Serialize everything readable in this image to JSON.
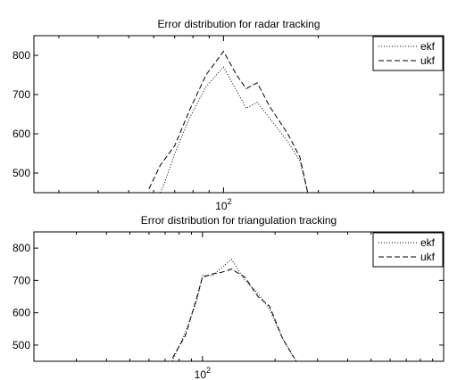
{
  "chart_data": [
    {
      "type": "line",
      "title": "Error distribution for radar tracking",
      "xlabel": "",
      "ylabel": "",
      "x_scale": "log",
      "xlim": [
        25,
        500
      ],
      "ylim": [
        450,
        850
      ],
      "grid": false,
      "legend_position": "top-right",
      "x_tick_labels": [
        {
          "value": 100,
          "base": "10",
          "exp": "2"
        }
      ],
      "y_ticks": [
        500,
        600,
        700,
        800
      ],
      "series": [
        {
          "name": "ekf",
          "style": "dotted",
          "color": "#000000",
          "points": [
            [
              63,
              450
            ],
            [
              65,
              475
            ],
            [
              70,
              550
            ],
            [
              78,
              640
            ],
            [
              88,
              720
            ],
            [
              100,
              770
            ],
            [
              110,
              710
            ],
            [
              118,
              665
            ],
            [
              128,
              680
            ],
            [
              140,
              640
            ],
            [
              160,
              580
            ],
            [
              175,
              530
            ],
            [
              185,
              450
            ]
          ]
        },
        {
          "name": "ukf",
          "style": "dashed",
          "color": "#000000",
          "points": [
            [
              58,
              460
            ],
            [
              63,
              520
            ],
            [
              70,
              570
            ],
            [
              78,
              660
            ],
            [
              88,
              750
            ],
            [
              100,
              810
            ],
            [
              110,
              750
            ],
            [
              118,
              715
            ],
            [
              128,
              730
            ],
            [
              140,
              670
            ],
            [
              160,
              600
            ],
            [
              175,
              540
            ],
            [
              185,
              450
            ]
          ]
        }
      ]
    },
    {
      "type": "line",
      "title": "Error distribution for triangulation tracking",
      "xlabel": "",
      "ylabel": "",
      "x_scale": "log",
      "xlim": [
        20,
        1000
      ],
      "ylim": [
        450,
        850
      ],
      "grid": false,
      "legend_position": "top-right",
      "x_tick_labels": [
        {
          "value": 100,
          "base": "10",
          "exp": "2"
        }
      ],
      "y_ticks": [
        500,
        600,
        700,
        800
      ],
      "series": [
        {
          "name": "ekf",
          "style": "dotted",
          "color": "#000000",
          "points": [
            [
              75,
              450
            ],
            [
              85,
              540
            ],
            [
              95,
              640
            ],
            [
              100,
              715
            ],
            [
              110,
              715
            ],
            [
              120,
              740
            ],
            [
              132,
              765
            ],
            [
              150,
              700
            ],
            [
              170,
              660
            ],
            [
              190,
              610
            ],
            [
              215,
              520
            ],
            [
              245,
              450
            ]
          ]
        },
        {
          "name": "ukf",
          "style": "dashed",
          "color": "#000000",
          "points": [
            [
              75,
              460
            ],
            [
              85,
              530
            ],
            [
              95,
              650
            ],
            [
              100,
              710
            ],
            [
              110,
              720
            ],
            [
              120,
              725
            ],
            [
              132,
              735
            ],
            [
              150,
              710
            ],
            [
              170,
              650
            ],
            [
              190,
              620
            ],
            [
              215,
              520
            ],
            [
              240,
              460
            ]
          ]
        }
      ]
    }
  ]
}
